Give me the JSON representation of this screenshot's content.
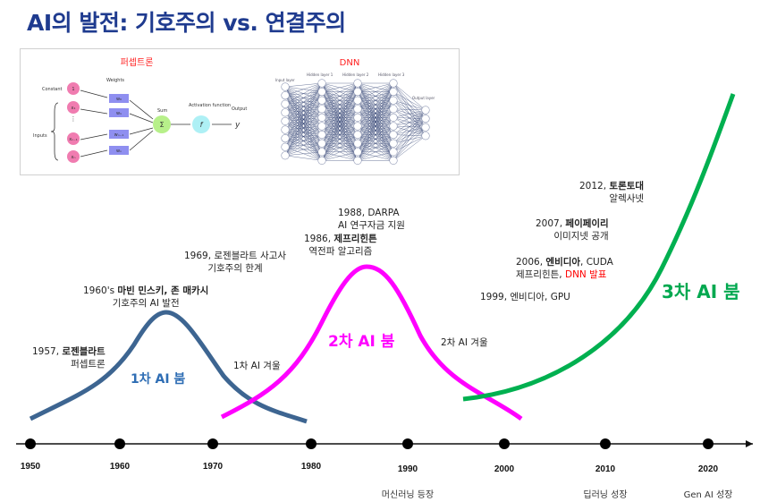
{
  "title": "AI의 발전: 기호주의 vs. 연결주의",
  "figure": {
    "perceptron_title": "퍼셉트론",
    "dnn_title": "DNN",
    "perceptron_labels": {
      "constant": "Constant",
      "weights": "Weights",
      "inputs": "Inputs",
      "sum": "Sum",
      "activation": "Activation function",
      "output": "Output",
      "one": "1",
      "x1": "x₁",
      "xn1": "xₙ₋₁",
      "xn": "xₙ",
      "w0": "w₀",
      "w1": "w₁",
      "wn1": "wₙ₋₁",
      "wn": "wₙ",
      "sigma": "Σ",
      "f": "f",
      "y": "y"
    },
    "dnn_labels": {
      "input": "Input layer",
      "h1": "Hidden layer 1",
      "h2": "Hidden layer 2",
      "h3": "Hidden layer 3",
      "output": "Output layer"
    }
  },
  "annotations": {
    "a1957": {
      "line1_year": "1957, ",
      "line1_bold": "로젠블라트",
      "line2": "퍼셉트론"
    },
    "a1960": {
      "line1_year": "1960's ",
      "line1_bold": "마빈 민스키, 존 매카시",
      "line2": "기호주의 AI 발전"
    },
    "a1969": {
      "line1": "1969, 로젠블라트 사고사",
      "line2": "기호주의 한계"
    },
    "a1988": {
      "line1": "1988, DARPA",
      "line2": "AI 연구자금 지원"
    },
    "a1986": {
      "line1_year": "1986, ",
      "line1_bold": "제프리힌튼",
      "line2": "역전파 알고리즘"
    },
    "a2012": {
      "line1_year": "2012, ",
      "line1_bold": "토론토대",
      "line2": "알렉사넷"
    },
    "a2007": {
      "line1_year": "2007, ",
      "line1_bold": "페이페이리",
      "line2": "이미지넷 공개"
    },
    "a2006": {
      "line1_year": "2006, ",
      "line1_bold": "엔비디아",
      "line1_rest": ", CUDA",
      "line2": "제프리힌튼, ",
      "line2_red": "DNN 발표"
    },
    "a1999": {
      "line1": "1999, 엔비디아, GPU"
    },
    "winter1": "1차 AI 겨울",
    "winter2": "2차 AI 겨울"
  },
  "booms": [
    {
      "label": "1차 AI 붐",
      "color": "#2e6db4"
    },
    {
      "label": "2차 AI 붐",
      "color": "#ff00ff"
    },
    {
      "label": "3차 AI 붐",
      "color": "#00a84f"
    }
  ],
  "curve_colors": {
    "boom1": "#3d6591",
    "boom2": "#ff00ff",
    "boom3": "#00b050"
  },
  "timeline": {
    "years": [
      "1950",
      "1960",
      "1970",
      "1980",
      "1990",
      "2000",
      "2010",
      "2020"
    ],
    "eras": [
      {
        "label": "머신러닝 등장",
        "year": "1990"
      },
      {
        "label": "딥러닝 성장",
        "year": "2010"
      },
      {
        "label": "Gen AI 성장",
        "year": "2020"
      }
    ]
  }
}
